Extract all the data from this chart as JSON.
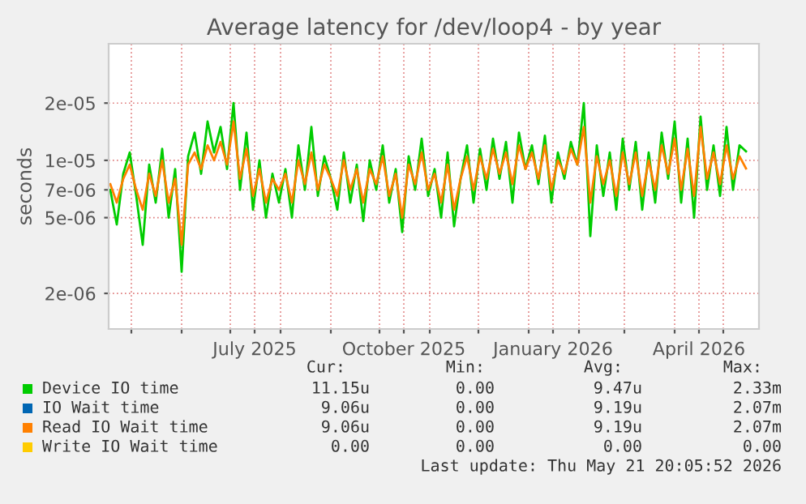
{
  "chart_data": {
    "type": "line",
    "title": "Average latency for /dev/loop4 - by year",
    "ylabel": "seconds",
    "log": "y",
    "grid": true,
    "legend": "bottom",
    "xlim": [
      "2025-04-17",
      "2026-05-23"
    ],
    "xticks": [
      {
        "value": "2025-05-01",
        "label": null
      },
      {
        "value": "2025-06-01",
        "label": null
      },
      {
        "value": "2025-07-01",
        "label": null
      },
      {
        "value": "2025-07-16",
        "label": "July 2025"
      },
      {
        "value": "2025-08-01",
        "label": null
      },
      {
        "value": "2025-09-01",
        "label": null
      },
      {
        "value": "2025-10-01",
        "label": null
      },
      {
        "value": "2025-10-16",
        "label": "October 2025"
      },
      {
        "value": "2025-11-01",
        "label": null
      },
      {
        "value": "2025-12-01",
        "label": null
      },
      {
        "value": "2026-01-01",
        "label": null
      },
      {
        "value": "2026-01-16",
        "label": "January 2026"
      },
      {
        "value": "2026-02-01",
        "label": null
      },
      {
        "value": "2026-03-01",
        "label": null
      },
      {
        "value": "2026-04-01",
        "label": null
      },
      {
        "value": "2026-04-16",
        "label": "April 2026"
      },
      {
        "value": "2026-05-01",
        "label": null
      }
    ],
    "ylim": [
      1.3e-06,
      4.1e-05
    ],
    "yticks": [
      {
        "value": 2e-06,
        "label": "2e-06"
      },
      {
        "value": 5e-06,
        "label": "5e-06"
      },
      {
        "value": 7e-06,
        "label": "7e-06"
      },
      {
        "value": 1e-05,
        "label": "1e-05"
      },
      {
        "value": 2e-05,
        "label": "2e-05"
      }
    ],
    "x": [
      "2025-04-18",
      "2025-04-22",
      "2025-04-26",
      "2025-04-30",
      "2025-05-04",
      "2025-05-08",
      "2025-05-12",
      "2025-05-16",
      "2025-05-20",
      "2025-05-24",
      "2025-05-28",
      "2025-06-01",
      "2025-06-05",
      "2025-06-09",
      "2025-06-13",
      "2025-06-17",
      "2025-06-21",
      "2025-06-25",
      "2025-06-29",
      "2025-07-03",
      "2025-07-07",
      "2025-07-11",
      "2025-07-15",
      "2025-07-19",
      "2025-07-23",
      "2025-07-27",
      "2025-07-31",
      "2025-08-04",
      "2025-08-08",
      "2025-08-12",
      "2025-08-16",
      "2025-08-20",
      "2025-08-24",
      "2025-08-28",
      "2025-09-01",
      "2025-09-05",
      "2025-09-09",
      "2025-09-13",
      "2025-09-17",
      "2025-09-21",
      "2025-09-25",
      "2025-09-29",
      "2025-10-03",
      "2025-10-07",
      "2025-10-11",
      "2025-10-15",
      "2025-10-19",
      "2025-10-23",
      "2025-10-27",
      "2025-10-31",
      "2025-11-04",
      "2025-11-08",
      "2025-11-12",
      "2025-11-16",
      "2025-11-20",
      "2025-11-24",
      "2025-11-28",
      "2025-12-02",
      "2025-12-06",
      "2025-12-10",
      "2025-12-14",
      "2025-12-18",
      "2025-12-22",
      "2025-12-26",
      "2025-12-30",
      "2026-01-03",
      "2026-01-07",
      "2026-01-11",
      "2026-01-15",
      "2026-01-19",
      "2026-01-23",
      "2026-01-27",
      "2026-01-31",
      "2026-02-04",
      "2026-02-08",
      "2026-02-12",
      "2026-02-16",
      "2026-02-20",
      "2026-02-24",
      "2026-02-28",
      "2026-03-04",
      "2026-03-08",
      "2026-03-12",
      "2026-03-16",
      "2026-03-20",
      "2026-03-24",
      "2026-03-28",
      "2026-04-01",
      "2026-04-05",
      "2026-04-09",
      "2026-04-13",
      "2026-04-17",
      "2026-04-21",
      "2026-04-25",
      "2026-04-29",
      "2026-05-03",
      "2026-05-07",
      "2026-05-11",
      "2026-05-15"
    ],
    "series": [
      {
        "name": "Device IO time",
        "color": "#00cc00",
        "values": [
          7e-06,
          4.6e-06,
          8.5e-06,
          1.1e-05,
          6.5e-06,
          3.6e-06,
          9.5e-06,
          6e-06,
          1.15e-05,
          5e-06,
          9e-06,
          2.6e-06,
          1.05e-05,
          1.4e-05,
          8.5e-06,
          1.6e-05,
          1.1e-05,
          1.5e-05,
          9e-06,
          2e-05,
          7e-06,
          1.4e-05,
          5.5e-06,
          1e-05,
          5e-06,
          8.5e-06,
          6e-06,
          9e-06,
          5e-06,
          1.2e-05,
          7e-06,
          1.5e-05,
          6.5e-06,
          1.05e-05,
          8e-06,
          5.5e-06,
          1.1e-05,
          6e-06,
          9.5e-06,
          4.8e-06,
          1e-05,
          7e-06,
          1.2e-05,
          6e-06,
          9e-06,
          4.2e-06,
          1.05e-05,
          7e-06,
          1.3e-05,
          6.5e-06,
          9e-06,
          5e-06,
          1.1e-05,
          4.5e-06,
          8e-06,
          1.2e-05,
          6e-06,
          1.15e-05,
          7e-06,
          1.3e-05,
          8e-06,
          1.25e-05,
          6e-06,
          1.4e-05,
          9e-06,
          1.2e-05,
          7.5e-06,
          1.35e-05,
          6e-06,
          1.1e-05,
          8e-06,
          1.25e-05,
          9.5e-06,
          2e-05,
          4e-06,
          1.2e-05,
          6.5e-06,
          1.1e-05,
          5.5e-06,
          1.3e-05,
          7e-06,
          1.25e-05,
          5.5e-06,
          1.1e-05,
          6e-06,
          1.4e-05,
          8e-06,
          1.6e-05,
          6e-06,
          1.3e-05,
          5e-06,
          1.7e-05,
          7e-06,
          1.2e-05,
          6.5e-06,
          1.5e-05,
          7e-06,
          1.2e-05,
          1.115e-05
        ]
      },
      {
        "name": "IO Wait time",
        "color": "#0066b3",
        "values": [
          null,
          null,
          null,
          null,
          null,
          null,
          null,
          null,
          null,
          null,
          null,
          null,
          null,
          null,
          null,
          null,
          null,
          null,
          null,
          null,
          null,
          null,
          null,
          null,
          null,
          null,
          null,
          null,
          null,
          null,
          null,
          null,
          null,
          null,
          null,
          null,
          null,
          null,
          null,
          null,
          null,
          null,
          null,
          null,
          null,
          null,
          null,
          null,
          null,
          null,
          null,
          null,
          null,
          null,
          null,
          null,
          null,
          null,
          null,
          null,
          null,
          null,
          null,
          null,
          null,
          null,
          null,
          null,
          null,
          null,
          null,
          null,
          null,
          null,
          null,
          null,
          null,
          null,
          null,
          null,
          null,
          null,
          null,
          null,
          null,
          null,
          null,
          null,
          null,
          null,
          null,
          null,
          null,
          null,
          null,
          null,
          null,
          null,
          null
        ]
      },
      {
        "name": "Read IO Wait time",
        "color": "#ff8000",
        "values": [
          7.5e-06,
          6e-06,
          8e-06,
          9.5e-06,
          7e-06,
          5.5e-06,
          8.5e-06,
          6.5e-06,
          1e-05,
          6e-06,
          8e-06,
          3.6e-06,
          9.5e-06,
          1.1e-05,
          9e-06,
          1.2e-05,
          1e-05,
          1.25e-05,
          9.5e-06,
          1.6e-05,
          8e-06,
          1.15e-05,
          6.5e-06,
          9e-06,
          6e-06,
          8e-06,
          7e-06,
          8.5e-06,
          6e-06,
          1e-05,
          7.5e-06,
          1.1e-05,
          7e-06,
          9.5e-06,
          8e-06,
          6.5e-06,
          1e-05,
          7e-06,
          9e-06,
          6e-06,
          9e-06,
          7.5e-06,
          1.05e-05,
          6.5e-06,
          8.5e-06,
          5e-06,
          9.5e-06,
          7.5e-06,
          1.1e-05,
          7e-06,
          8.5e-06,
          6e-06,
          9.5e-06,
          5.5e-06,
          8e-06,
          1.05e-05,
          7e-06,
          1.05e-05,
          8e-06,
          1.15e-05,
          8.5e-06,
          1.1e-05,
          7.5e-06,
          1.2e-05,
          9e-06,
          1.1e-05,
          8e-06,
          1.2e-05,
          7e-06,
          1e-05,
          8.5e-06,
          1.15e-05,
          9.5e-06,
          1.5e-05,
          6e-06,
          1.05e-05,
          7.5e-06,
          1e-05,
          6.5e-06,
          1.1e-05,
          7.5e-06,
          1.1e-05,
          6.5e-06,
          1e-05,
          7e-06,
          1.2e-05,
          8.5e-06,
          1.3e-05,
          7e-06,
          1.15e-05,
          6.5e-06,
          1.5e-05,
          8e-06,
          1.1e-05,
          7.5e-06,
          1.2e-05,
          8e-06,
          1.05e-05,
          9.06e-06
        ]
      },
      {
        "name": "Write IO Wait time",
        "color": "#ffcc00",
        "values": [
          null,
          null,
          null,
          null,
          null,
          null,
          null,
          null,
          null,
          null,
          null,
          null,
          null,
          null,
          null,
          null,
          null,
          null,
          null,
          null,
          null,
          null,
          null,
          null,
          null,
          null,
          null,
          null,
          null,
          null,
          null,
          null,
          null,
          null,
          null,
          null,
          null,
          null,
          null,
          null,
          null,
          null,
          null,
          null,
          null,
          null,
          null,
          null,
          null,
          null,
          null,
          null,
          null,
          null,
          null,
          null,
          null,
          null,
          null,
          null,
          null,
          null,
          null,
          null,
          null,
          null,
          null,
          null,
          null,
          null,
          null,
          null,
          null,
          null,
          null,
          null,
          null,
          null,
          null,
          null,
          null,
          null,
          null,
          null,
          null,
          null,
          null,
          null,
          null,
          null,
          null,
          null,
          null,
          null,
          null,
          null,
          null,
          null,
          null
        ]
      }
    ],
    "annotations": [
      "Cur:",
      "Min:",
      "Avg:",
      "Max:",
      "11.15u",
      "0.00",
      "9.47u",
      "2.33m",
      "9.06u",
      "0.00",
      "9.19u",
      "2.07m",
      "9.06u",
      "0.00",
      "9.19u",
      "2.07m",
      "0.00",
      "0.00",
      "0.00",
      "0.00",
      "Last update: Thu May 21 20:05:52 2026"
    ]
  }
}
